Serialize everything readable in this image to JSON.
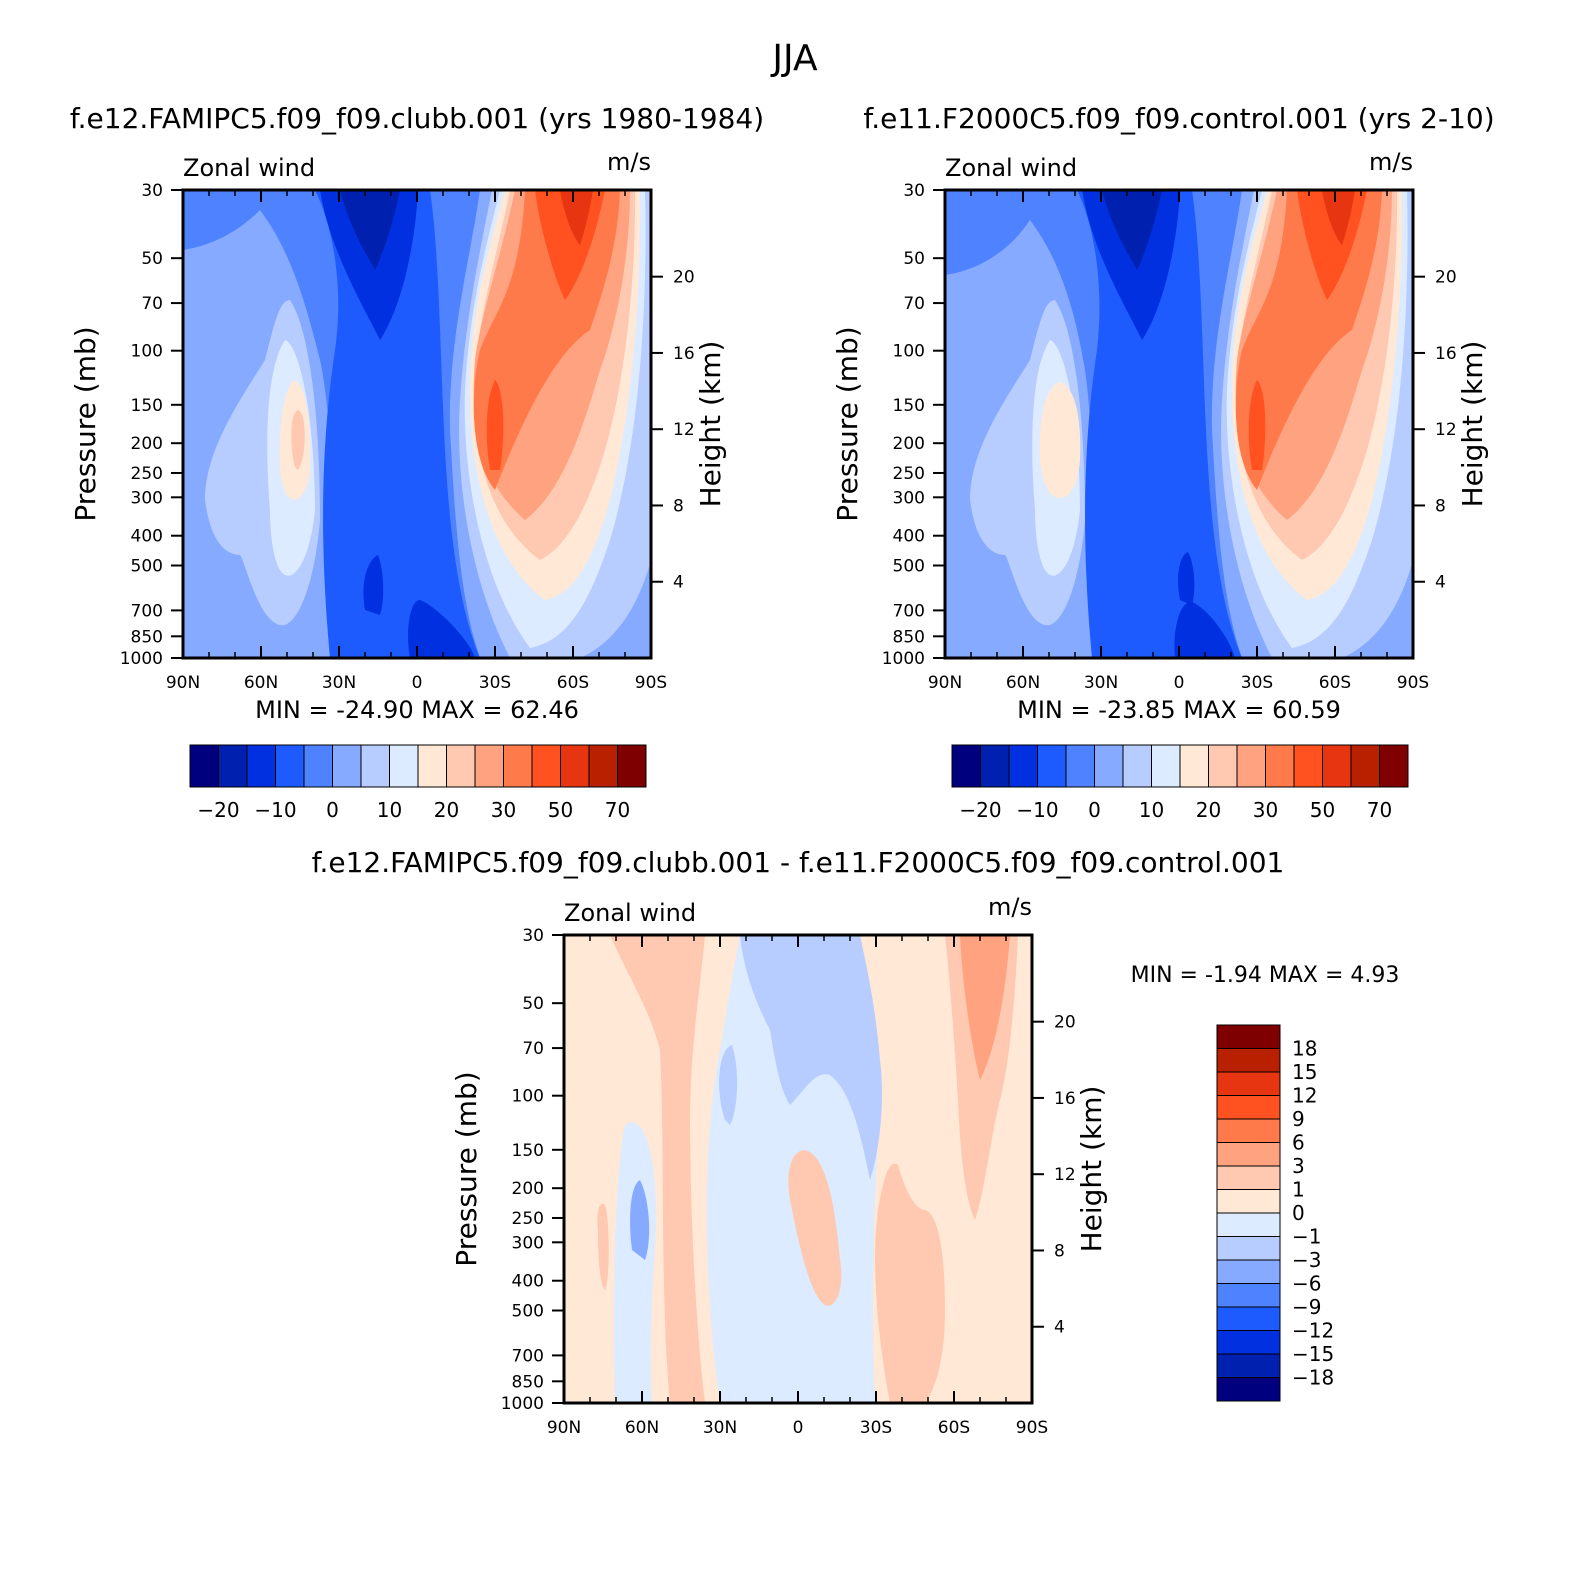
{
  "figure_title": "JJA",
  "colors": {
    "panel_colorbar": [
      "#00007f",
      "#0020b0",
      "#0030e0",
      "#1e5bff",
      "#4f82ff",
      "#86aaff",
      "#b7ccff",
      "#dcebff",
      "#ffe8d6",
      "#ffc8b0",
      "#ffa27f",
      "#ff7a4a",
      "#ff5220",
      "#e63510",
      "#b82000",
      "#7f0000"
    ],
    "diff_colorbar": [
      "#00007f",
      "#0020b0",
      "#0030e0",
      "#1e5bff",
      "#4f82ff",
      "#86aaff",
      "#b7ccff",
      "#dcebff",
      "#ffe8d6",
      "#ffc8b0",
      "#ffa27f",
      "#ff7a4a",
      "#ff5220",
      "#e63510",
      "#b82000",
      "#7f0000"
    ]
  },
  "chart_data": [
    {
      "type": "heatmap",
      "title": "f.e12.FAMIPC5.f09_f09.clubb.001 (yrs 1980-1984)",
      "left_label": "Zonal wind",
      "right_label": "m/s",
      "ylabel": "Pressure (mb)",
      "ylabel_right": "Height (km)",
      "x_ticks": [
        "90N",
        "60N",
        "30N",
        "0",
        "30S",
        "60S",
        "90S"
      ],
      "y_ticks": [
        "30",
        "50",
        "70",
        "100",
        "150",
        "200",
        "250",
        "300",
        "400",
        "500",
        "700",
        "850",
        "1000"
      ],
      "y_right_ticks": [
        "20",
        "16",
        "12",
        "8",
        "4"
      ],
      "stats": "MIN = -24.90   MAX =  62.46",
      "colorbar_labels": [
        "-20",
        "-10",
        "0",
        "10",
        "20",
        "30",
        "50",
        "70"
      ],
      "features": [
        {
          "lat": -16,
          "p": 35,
          "value": -20
        },
        {
          "lat": -45,
          "p": 200,
          "value": 20
        },
        {
          "lat": 30,
          "p": 200,
          "value": 50
        },
        {
          "lat": 60,
          "p": 35,
          "value": 60
        }
      ]
    },
    {
      "type": "heatmap",
      "title": "f.e11.F2000C5.f09_f09.control.001 (yrs 2-10)",
      "left_label": "Zonal wind",
      "right_label": "m/s",
      "ylabel": "Pressure (mb)",
      "ylabel_right": "Height (km)",
      "x_ticks": [
        "90N",
        "60N",
        "30N",
        "0",
        "30S",
        "60S",
        "90S"
      ],
      "y_ticks": [
        "30",
        "50",
        "70",
        "100",
        "150",
        "200",
        "250",
        "300",
        "400",
        "500",
        "700",
        "850",
        "1000"
      ],
      "y_right_ticks": [
        "20",
        "16",
        "12",
        "8",
        "4"
      ],
      "stats": "MIN = -23.85   MAX =  60.59",
      "colorbar_labels": [
        "-20",
        "-10",
        "0",
        "10",
        "20",
        "30",
        "50",
        "70"
      ],
      "features": [
        {
          "lat": -16,
          "p": 35,
          "value": -20
        },
        {
          "lat": -45,
          "p": 200,
          "value": 20
        },
        {
          "lat": 30,
          "p": 200,
          "value": 50
        },
        {
          "lat": 60,
          "p": 35,
          "value": 50
        }
      ]
    },
    {
      "type": "heatmap",
      "title": "f.e12.FAMIPC5.f09_f09.clubb.001 - f.e11.F2000C5.f09_f09.control.001",
      "left_label": "Zonal wind",
      "right_label": "m/s",
      "ylabel": "Pressure (mb)",
      "ylabel_right": "Height (km)",
      "x_ticks": [
        "90N",
        "60N",
        "30N",
        "0",
        "30S",
        "60S",
        "90S"
      ],
      "y_ticks": [
        "30",
        "50",
        "70",
        "100",
        "150",
        "200",
        "250",
        "300",
        "400",
        "500",
        "700",
        "850",
        "1000"
      ],
      "y_right_ticks": [
        "20",
        "16",
        "12",
        "8",
        "4"
      ],
      "stats": "MIN =   -1.94   MAX =    4.93",
      "colorbar_labels": [
        "18",
        "15",
        "12",
        "9",
        "6",
        "3",
        "1",
        "0",
        "-1",
        "-3",
        "-6",
        "-9",
        "-12",
        "-15",
        "-18"
      ],
      "features": [
        {
          "lat": 70,
          "p": 45,
          "value": 3
        },
        {
          "lat": 5,
          "p": 60,
          "value": -1
        },
        {
          "lat": -70,
          "p": 200,
          "value": -1
        },
        {
          "lat": 10,
          "p": 250,
          "value": 1
        }
      ]
    }
  ]
}
